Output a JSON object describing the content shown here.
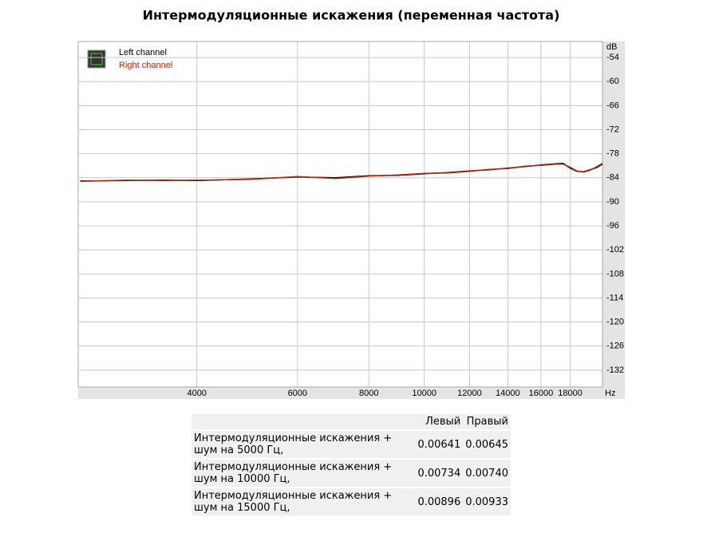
{
  "chart_data": {
    "type": "line",
    "title": "Интермодуляционные искажения (переменная частота)",
    "y_unit": "dB",
    "x_unit": "Hz",
    "x": [
      2500,
      3000,
      3500,
      4000,
      5000,
      6000,
      7000,
      8000,
      9000,
      10000,
      11000,
      12000,
      13000,
      14000,
      15000,
      16000,
      17000,
      17500,
      18000,
      18500,
      19000,
      19500,
      20000,
      20500
    ],
    "series": [
      {
        "name": "Left channel",
        "color": "#000000",
        "values": [
          -84.8,
          -84.7,
          -84.6,
          -84.7,
          -84.3,
          -83.8,
          -84.0,
          -83.5,
          -83.4,
          -83.0,
          -82.7,
          -82.3,
          -82.0,
          -81.6,
          -81.2,
          -80.8,
          -80.5,
          -80.4,
          -81.6,
          -82.4,
          -82.5,
          -82.0,
          -81.5,
          -80.6
        ]
      },
      {
        "name": "Right channel",
        "color": "#b02a10",
        "values": [
          -84.9,
          -84.6,
          -84.7,
          -84.6,
          -84.4,
          -83.7,
          -84.2,
          -83.6,
          -83.3,
          -82.9,
          -82.8,
          -82.4,
          -81.9,
          -81.7,
          -81.1,
          -80.9,
          -80.6,
          -80.6,
          -81.4,
          -82.3,
          -82.6,
          -82.1,
          -81.3,
          -80.4
        ]
      }
    ],
    "xlim": [
      2480,
      20500
    ],
    "x_log": true,
    "xticks": [
      4000,
      6000,
      8000,
      10000,
      12000,
      14000,
      16000,
      18000
    ],
    "ylim": [
      -136.2,
      -50
    ],
    "yticks": [
      -54,
      -60,
      -66,
      -72,
      -78,
      -84,
      -90,
      -96,
      -102,
      -108,
      -114,
      -120,
      -126,
      -132
    ],
    "grid": true,
    "legend": "upper left"
  },
  "table": {
    "header": [
      "Левый",
      "Правый"
    ],
    "rows": [
      {
        "label": "Интермодуляционные искажения + шум на 5000 Гц,",
        "values": [
          "0.00641",
          "0.00645"
        ]
      },
      {
        "label": "Интермодуляционные искажения + шум на 10000 Гц,",
        "values": [
          "0.00734",
          "0.00740"
        ]
      },
      {
        "label": "Интермодуляционные искажения + шум на 15000 Гц,",
        "values": [
          "0.00896",
          "0.00933"
        ]
      }
    ]
  }
}
